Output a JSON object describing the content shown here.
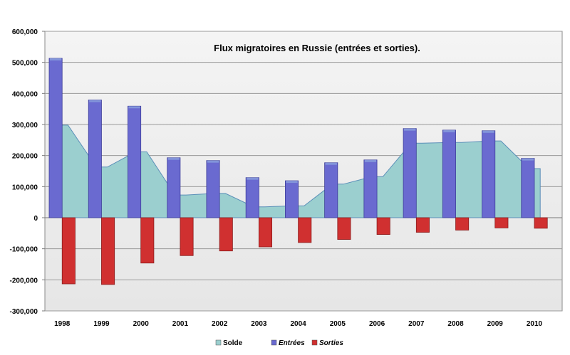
{
  "chart_data": {
    "type": "bar",
    "title": "Flux migratoires en Russie (entrées et sorties).",
    "xlabel": "",
    "ylabel": "",
    "categories": [
      "1998",
      "1999",
      "2000",
      "2001",
      "2002",
      "2003",
      "2004",
      "2005",
      "2006",
      "2007",
      "2008",
      "2009",
      "2010"
    ],
    "ylim": [
      -300000,
      600000
    ],
    "yticks": [
      -300000,
      -200000,
      -100000,
      0,
      100000,
      200000,
      300000,
      400000,
      500000,
      600000
    ],
    "ytick_labels": [
      "-300,000",
      "-200,000",
      "-100,000",
      "0",
      "100,000",
      "200,000",
      "300,000",
      "400,000",
      "500,000",
      "600,000"
    ],
    "grid": true,
    "legend": "bottom",
    "series": [
      {
        "name": "Solde",
        "kind": "area",
        "color": "#9bcfcf",
        "values": [
          298000,
          163000,
          212000,
          73000,
          78000,
          35000,
          38000,
          108000,
          132000,
          240000,
          242000,
          247000,
          158000
        ]
      },
      {
        "name": "Entrées",
        "kind": "bar",
        "color": "#6a6ad0",
        "values": [
          513000,
          379000,
          359000,
          193000,
          184000,
          129000,
          119000,
          177000,
          186000,
          287000,
          282000,
          280000,
          191000
        ]
      },
      {
        "name": "Sorties",
        "kind": "bar",
        "color": "#d03030",
        "values": [
          -213000,
          -215000,
          -146000,
          -122000,
          -107000,
          -94000,
          -80000,
          -70000,
          -54000,
          -47000,
          -40000,
          -33000,
          -34000
        ]
      }
    ]
  }
}
